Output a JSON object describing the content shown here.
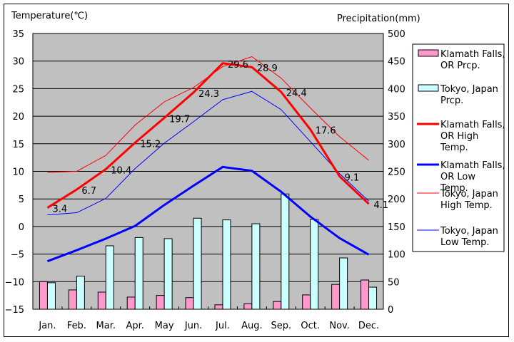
{
  "chart_data": {
    "type": "bar+line",
    "left_axis_title": "Temperature(℃)",
    "right_axis_title": "Precipitation(mm)",
    "categories": [
      "Jan.",
      "Feb.",
      "Mar.",
      "Apr.",
      "May",
      "Jun.",
      "Jul.",
      "Aug.",
      "Sep.",
      "Oct.",
      "Nov.",
      "Dec."
    ],
    "ylim_left": [
      -15,
      35
    ],
    "yticks_left": [
      "35",
      "30",
      "25",
      "20",
      "15",
      "10",
      "5",
      "0",
      "-5",
      "-10",
      "-15"
    ],
    "ylim_right": [
      0,
      500
    ],
    "yticks_right": [
      "500",
      "450",
      "400",
      "350",
      "300",
      "250",
      "200",
      "150",
      "100",
      "50",
      "0"
    ],
    "grid": true,
    "legend_position": "right",
    "bar_series": [
      {
        "name": "Klamath Falls, OR Prcp.",
        "legend_lines": [
          "Klamath Falls,",
          "OR Prcp."
        ],
        "color": "#ff99cc",
        "values": [
          50,
          35,
          31,
          22,
          25,
          21,
          8,
          10,
          14,
          26,
          45,
          53
        ]
      },
      {
        "name": "Tokyo, Japan Prcp.",
        "legend_lines": [
          "Tokyo, Japan",
          "Prcp."
        ],
        "color": "#ccffff",
        "values": [
          48,
          60,
          115,
          130,
          128,
          165,
          162,
          155,
          209,
          163,
          93,
          40
        ]
      }
    ],
    "line_series": [
      {
        "name": "Klamath Falls, OR High Temp.",
        "legend_lines": [
          "Klamath Falls,",
          "OR High",
          "Temp."
        ],
        "color": "#ff0000",
        "width": "thick",
        "values": [
          3.4,
          6.7,
          10.4,
          15.2,
          19.7,
          24.3,
          29.6,
          28.9,
          24.4,
          17.6,
          9.1,
          4.1
        ],
        "data_labels": [
          "3.4",
          "6.7",
          "10.4",
          "15.2",
          "19.7",
          "24.3",
          "29.6",
          "28.9",
          "24.4",
          "17.6",
          "9.1",
          "4.1"
        ]
      },
      {
        "name": "Klamath Falls, OR Low Temp.",
        "legend_lines": [
          "Klamath Falls,",
          "OR Low",
          "Temp."
        ],
        "color": "#0000ff",
        "width": "thick",
        "values": [
          -6.3,
          -4.3,
          -2.2,
          0.1,
          3.9,
          7.4,
          10.8,
          10.1,
          6.3,
          1.8,
          -2.1,
          -5.1
        ]
      },
      {
        "name": "Tokyo, Japan High Temp.",
        "legend_lines": [
          "Tokyo, Japan",
          "High Temp."
        ],
        "color": "#ff0000",
        "width": "thin",
        "values": [
          9.8,
          10.0,
          12.9,
          18.4,
          22.6,
          25.2,
          29.0,
          30.8,
          26.9,
          21.5,
          16.3,
          12.0
        ]
      },
      {
        "name": "Tokyo, Japan Low Temp.",
        "legend_lines": [
          "Tokyo, Japan",
          "Low Temp."
        ],
        "color": "#0000ff",
        "width": "thin",
        "values": [
          2.1,
          2.5,
          5.1,
          10.5,
          15.1,
          19.0,
          23.0,
          24.5,
          21.2,
          15.4,
          9.6,
          4.6
        ]
      }
    ],
    "plot_background": "#c0c0c0"
  }
}
